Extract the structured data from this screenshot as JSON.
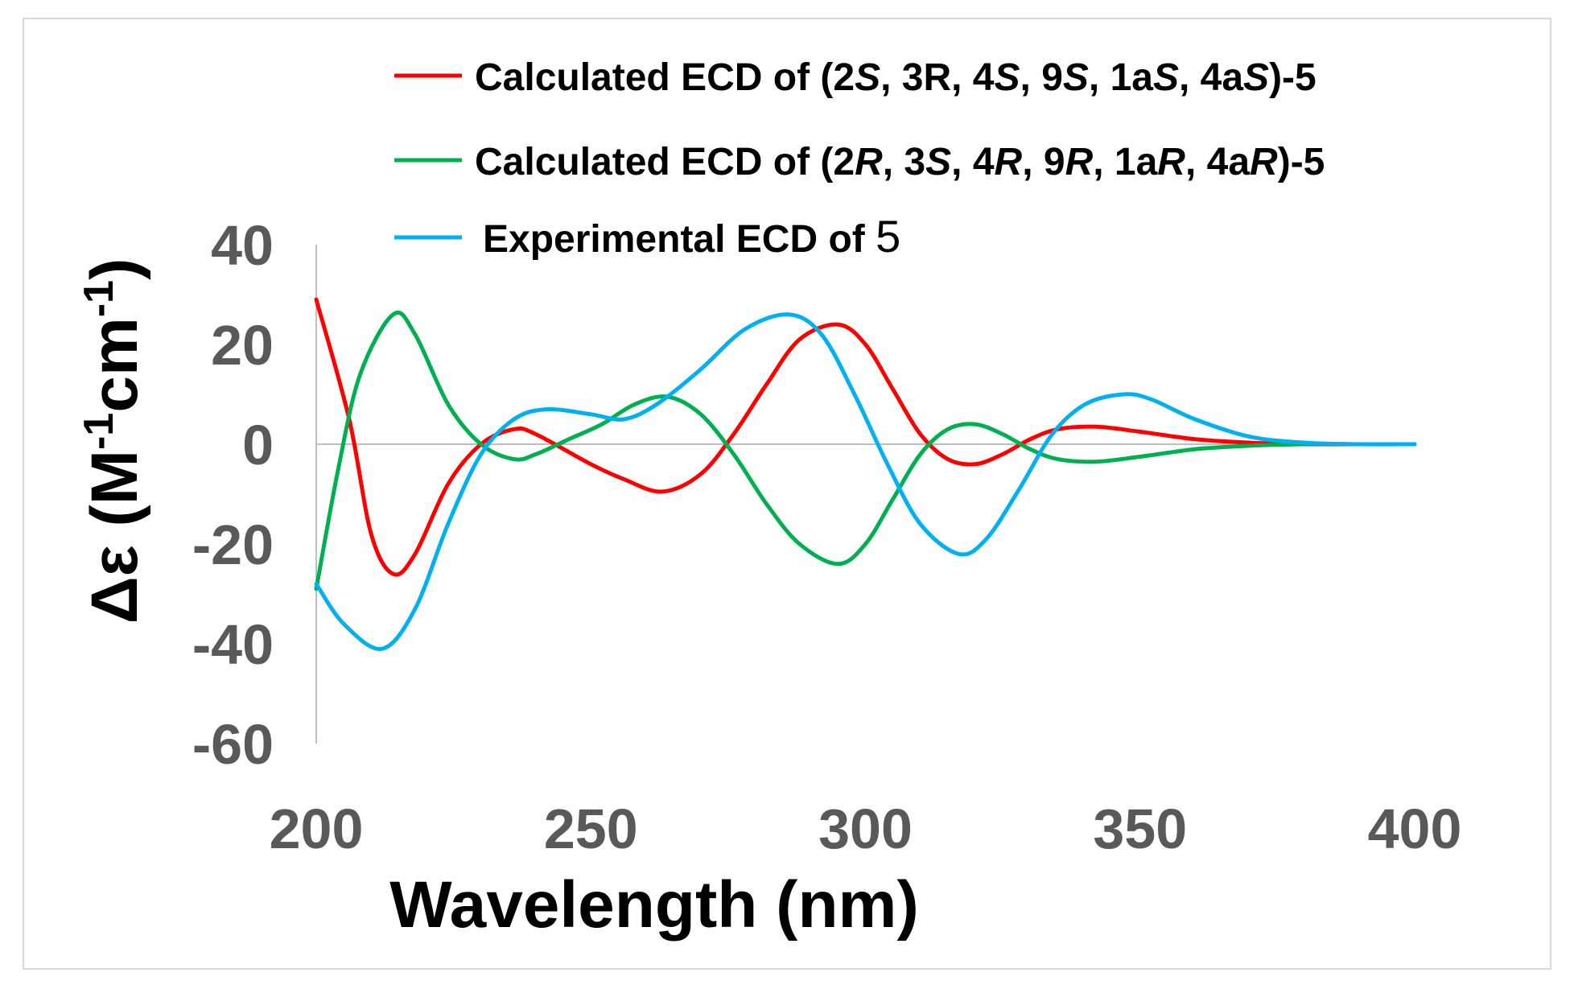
{
  "chart_data": {
    "type": "line",
    "xlabel": "Wavelength (nm)",
    "ylabel_parts": [
      "Δε (M",
      "-1",
      "cm",
      "-1",
      ")"
    ],
    "xlim": [
      200,
      400
    ],
    "ylim": [
      -60,
      40
    ],
    "x_ticks": [
      "200",
      "250",
      "300",
      "350",
      "400"
    ],
    "y_ticks": [
      "40",
      "20",
      "0",
      "-20",
      "-40",
      "-60"
    ],
    "grid": false,
    "legend_position": "top-right",
    "colors": {
      "calc_S": "#ff0000",
      "calc_R": "#00b050",
      "experimental": "#00b0f0",
      "zero_line": "#bfbfbf"
    },
    "legend": [
      {
        "key": "calc_S",
        "parts": [
          {
            "t": "Calculated ECD of (2"
          },
          {
            "t": "S",
            "i": true
          },
          {
            "t": ", 3R, 4"
          },
          {
            "t": "S",
            "i": true
          },
          {
            "t": ", 9"
          },
          {
            "t": "S",
            "i": true
          },
          {
            "t": ", 1a"
          },
          {
            "t": "S",
            "i": true
          },
          {
            "t": ", 4a"
          },
          {
            "t": "S",
            "i": true
          },
          {
            "t": ")-5"
          }
        ]
      },
      {
        "key": "calc_R",
        "parts": [
          {
            "t": "Calculated ECD of (2"
          },
          {
            "t": "R",
            "i": true
          },
          {
            "t": ", 3"
          },
          {
            "t": "S",
            "i": true
          },
          {
            "t": ", 4"
          },
          {
            "t": "R",
            "i": true
          },
          {
            "t": ", 9"
          },
          {
            "t": "R",
            "i": true
          },
          {
            "t": ", 1a"
          },
          {
            "t": "R",
            "i": true
          },
          {
            "t": ", 4a"
          },
          {
            "t": "R",
            "i": true
          },
          {
            "t": ")-5"
          }
        ]
      },
      {
        "key": "experimental",
        "parts": [
          {
            "t": "Experimental  ECD of  "
          },
          {
            "t": "5",
            "big": true
          }
        ]
      }
    ],
    "series": [
      {
        "key": "calc_S",
        "x": [
          200,
          206,
          210,
          214,
          218,
          224,
          230,
          236,
          240,
          250,
          256,
          263,
          270,
          276,
          282,
          288,
          295,
          300,
          305,
          310,
          315,
          320,
          325,
          330,
          335,
          342,
          350,
          360,
          370,
          380,
          390,
          400
        ],
        "y": [
          29,
          5,
          -18,
          -26,
          -22,
          -8,
          0,
          3,
          2,
          -4,
          -7,
          -9.5,
          -6,
          2,
          12,
          21,
          24,
          20,
          11,
          2,
          -3,
          -4,
          -2,
          1,
          3,
          3.5,
          2.5,
          1,
          0.3,
          0,
          0,
          0
        ]
      },
      {
        "key": "calc_R",
        "x": [
          200,
          204,
          208,
          214,
          218,
          224,
          230,
          236,
          240,
          246,
          252,
          258,
          264,
          270,
          276,
          282,
          288,
          295,
          300,
          305,
          310,
          315,
          320,
          325,
          330,
          335,
          342,
          350,
          360,
          370,
          380,
          390,
          400
        ],
        "y": [
          -29,
          -5,
          14,
          26,
          22,
          8,
          0,
          -3,
          -2,
          1,
          4,
          8,
          9.5,
          6,
          -2,
          -12,
          -20,
          -24,
          -20,
          -11,
          -2,
          3,
          4,
          2,
          -1,
          -3,
          -3.5,
          -2.5,
          -1,
          -0.3,
          0,
          0,
          0
        ]
      },
      {
        "key": "experimental",
        "x": [
          200,
          205,
          212,
          218,
          224,
          230,
          236,
          242,
          250,
          256,
          262,
          270,
          278,
          286,
          292,
          298,
          304,
          310,
          317,
          322,
          328,
          334,
          340,
          347,
          352,
          360,
          370,
          380,
          390,
          400
        ],
        "y": [
          -28,
          -36,
          -41,
          -33,
          -16,
          -2,
          5,
          7,
          6,
          5,
          8,
          15,
          23,
          26,
          22,
          10,
          -4,
          -16,
          -22,
          -19,
          -9,
          2,
          8,
          10,
          9,
          5,
          1.5,
          0.3,
          0,
          0
        ]
      }
    ]
  }
}
